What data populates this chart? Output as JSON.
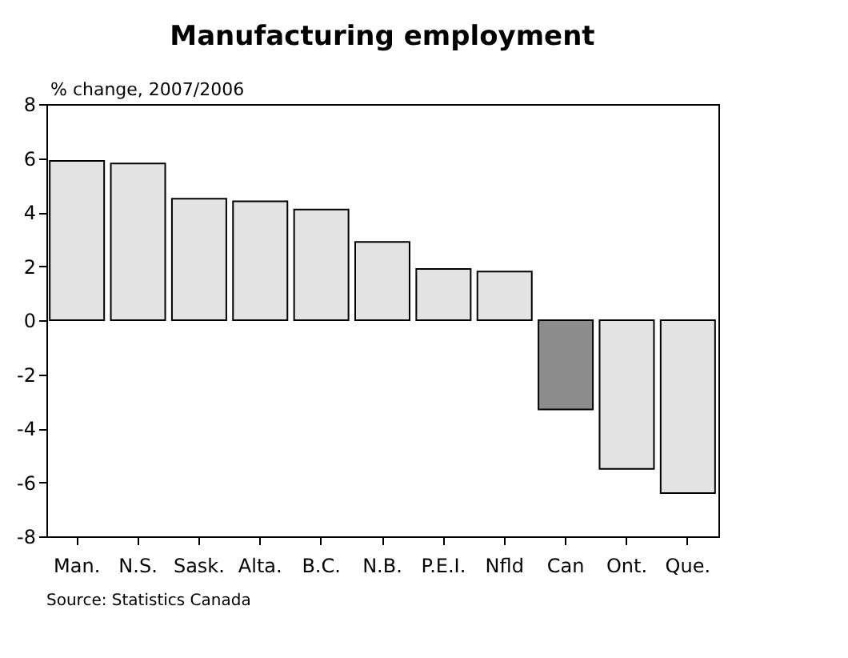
{
  "chart_data": {
    "type": "bar",
    "title": "Manufacturing employment",
    "ylabel": "% change, 2007/2006",
    "categories": [
      "Man.",
      "N.S.",
      "Sask.",
      "Alta.",
      "B.C.",
      "N.B.",
      "P.E.I.",
      "Nfld",
      "Can",
      "Ont.",
      "Que."
    ],
    "values": [
      5.9,
      5.8,
      4.5,
      4.4,
      4.1,
      2.9,
      1.9,
      1.8,
      -3.3,
      -5.5,
      -6.4
    ],
    "colors": [
      "#e3e3e3",
      "#e3e3e3",
      "#e3e3e3",
      "#e3e3e3",
      "#e3e3e3",
      "#e3e3e3",
      "#e3e3e3",
      "#e3e3e3",
      "#8c8c8c",
      "#e3e3e3",
      "#e3e3e3"
    ],
    "ylim": [
      -8,
      8
    ],
    "yticks": [
      -8,
      -6,
      -4,
      -2,
      0,
      2,
      4,
      6,
      8
    ],
    "grid": false,
    "annotations": [
      "Source: Statistics Canada"
    ]
  }
}
